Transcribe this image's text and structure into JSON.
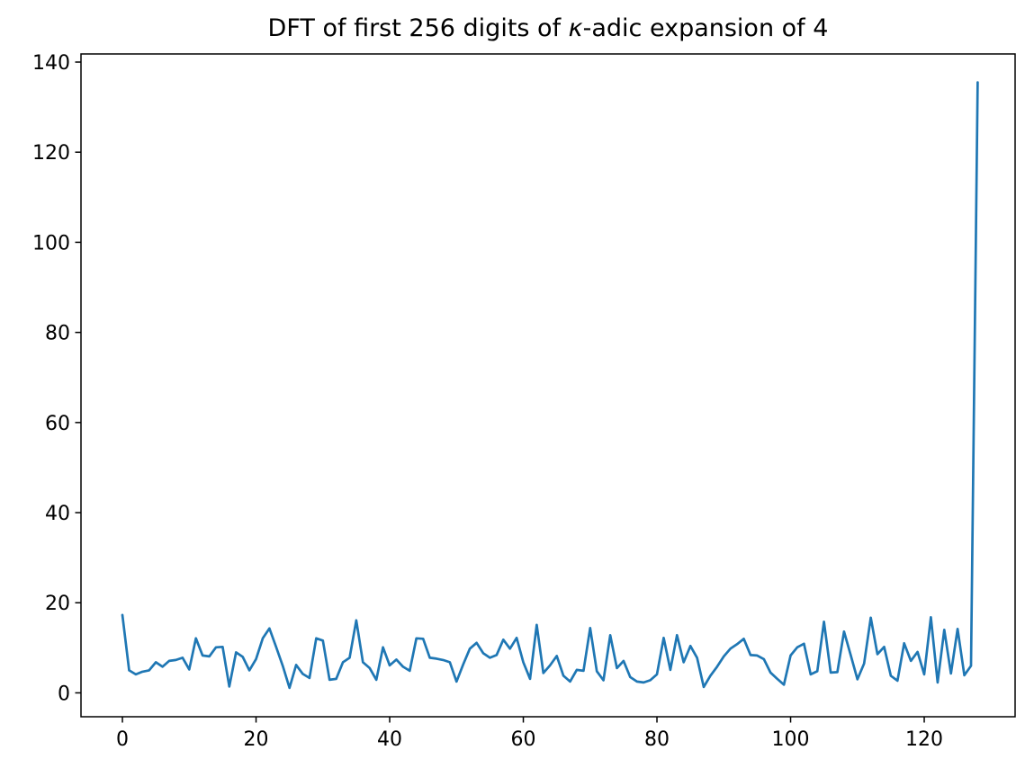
{
  "figure": {
    "title": {
      "prefix": "DFT of first 256 digits of ",
      "kappa": "κ",
      "suffix": "-adic expansion of 4"
    }
  },
  "chart_data": {
    "type": "line",
    "title": "DFT of first 256 digits of κ-adic expansion of 4",
    "xlabel": "",
    "ylabel": "",
    "grid": false,
    "legend": null,
    "line_color": "#1f77b4",
    "axis_color": "#000000",
    "xlim": [
      -6.2,
      133.6
    ],
    "ylim": [
      -5.3,
      141.8
    ],
    "x_ticks": [
      0,
      20,
      40,
      60,
      80,
      100,
      120
    ],
    "y_ticks": [
      0,
      20,
      40,
      60,
      80,
      100,
      120,
      140
    ],
    "x_start": 0,
    "x_step": 1,
    "values": [
      17.3,
      5.0,
      4.1,
      4.7,
      5.0,
      6.8,
      5.8,
      7.1,
      7.3,
      7.8,
      5.2,
      12.1,
      8.3,
      8.1,
      10.1,
      10.2,
      1.4,
      9.0,
      8.0,
      5.0,
      7.5,
      12.1,
      14.3,
      10.2,
      6.0,
      1.1,
      6.2,
      4.2,
      3.3,
      12.1,
      11.6,
      2.9,
      3.1,
      6.8,
      7.8,
      16.1,
      6.8,
      5.5,
      2.9,
      10.1,
      6.1,
      7.4,
      5.8,
      4.9,
      12.1,
      12.0,
      7.8,
      7.6,
      7.3,
      6.8,
      2.5,
      6.3,
      9.8,
      11.1,
      8.8,
      7.8,
      8.4,
      11.8,
      9.8,
      12.2,
      6.8,
      3.1,
      15.1,
      4.4,
      6.1,
      8.2,
      3.8,
      2.5,
      5.1,
      4.9,
      14.4,
      4.8,
      2.8,
      12.8,
      5.5,
      7.1,
      3.5,
      2.5,
      2.3,
      2.8,
      4.1,
      12.2,
      5.1,
      12.8,
      6.8,
      10.4,
      7.8,
      1.3,
      3.8,
      5.8,
      8.1,
      9.8,
      10.8,
      12.0,
      8.4,
      8.3,
      7.5,
      4.5,
      3.1,
      1.8,
      8.3,
      10.1,
      10.9,
      4.1,
      4.8,
      15.8,
      4.5,
      4.6,
      13.6,
      8.4,
      3.0,
      6.5,
      16.7,
      8.6,
      10.2,
      3.8,
      2.7,
      11.0,
      7.1,
      9.1,
      4.1,
      16.8,
      2.3,
      14.0,
      4.3,
      14.2,
      3.9,
      6.0,
      135.5
    ]
  }
}
